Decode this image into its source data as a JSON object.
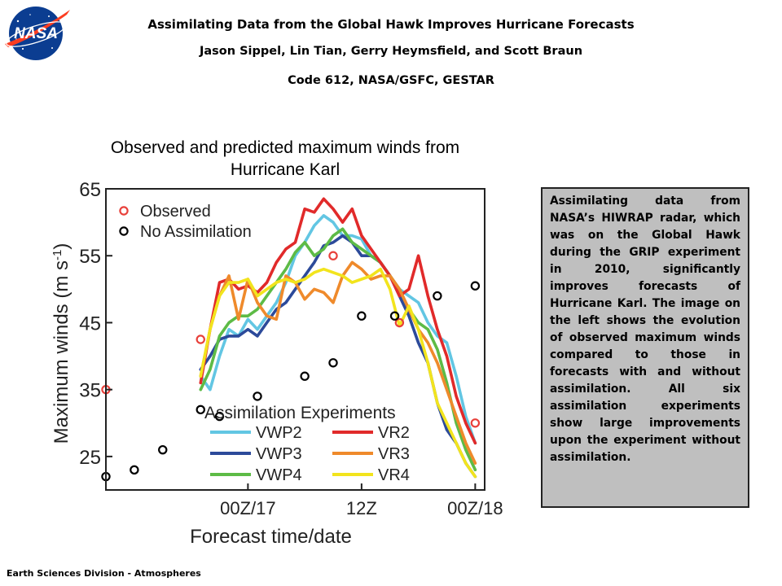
{
  "header": {
    "title": "Assimilating Data from the Global Hawk Improves Hurricane Forecasts",
    "authors": "Jason Sippel, Lin Tian, Gerry Heymsfield, and Scott Braun",
    "affiliation": "Code 612, NASA/GSFC, GESTAR"
  },
  "logo": {
    "text": "NASA",
    "colors": {
      "blue": "#0b3d91",
      "red": "#fc3d21"
    }
  },
  "chart_data": {
    "type": "line",
    "title": "Observed and predicted maximum winds from Hurricane Karl",
    "xlabel": "Forecast time/date",
    "ylabel": "Maximum winds (m s-1)",
    "ylim": [
      20,
      65
    ],
    "xlim": [
      -15,
      25
    ],
    "x_ticks": [
      {
        "x": 0,
        "label": "00Z/17"
      },
      {
        "x": 12,
        "label": "12Z"
      },
      {
        "x": 24,
        "label": "00Z/18"
      }
    ],
    "y_ticks": [
      25,
      35,
      45,
      55,
      65
    ],
    "grid": false,
    "legend_top": {
      "entries": [
        {
          "label": "Observed",
          "marker": "circle",
          "color": "#e8403a"
        },
        {
          "label": "No Assimilation",
          "marker": "circle",
          "color": "#000000"
        }
      ],
      "placement": "top-left"
    },
    "legend_bottom": {
      "title": "Assimilation Experiments",
      "placement": "bottom-center"
    },
    "series": [
      {
        "name": "Observed",
        "style": "points",
        "color": "#e8403a",
        "x": [
          -15,
          -5,
          9,
          16,
          24
        ],
        "values": [
          35,
          42.5,
          55,
          45,
          30
        ]
      },
      {
        "name": "No Assimilation",
        "style": "points",
        "color": "#000000",
        "x": [
          -15,
          -12,
          -9,
          -5,
          -3,
          1,
          6,
          9,
          12,
          15.5,
          20,
          24
        ],
        "values": [
          22,
          23,
          26,
          32,
          31,
          34,
          37,
          39,
          46,
          46,
          49,
          50.5
        ]
      },
      {
        "name": "VWP2",
        "style": "line",
        "color": "#62c6e3",
        "x": [
          -5,
          -4,
          -3,
          -2,
          -1,
          0,
          1,
          2,
          3,
          4,
          5,
          6,
          7,
          8,
          9,
          10,
          11,
          12,
          13,
          14,
          15,
          16,
          17,
          18,
          19,
          20,
          21,
          22,
          23,
          24
        ],
        "values": [
          37,
          35,
          40,
          44,
          43,
          45.5,
          44,
          46,
          48,
          51,
          55,
          57,
          59.5,
          61,
          60,
          58,
          58,
          57.5,
          55,
          54,
          52,
          50,
          49,
          48,
          45,
          43,
          42,
          37,
          31,
          27
        ]
      },
      {
        "name": "VWP3",
        "style": "line",
        "color": "#2c4a9a",
        "x": [
          -5,
          -4,
          -3,
          -2,
          -1,
          0,
          1,
          2,
          3,
          4,
          5,
          6,
          7,
          8,
          9,
          10,
          11,
          12,
          13,
          14,
          15,
          16,
          17,
          18,
          19,
          20,
          21,
          22,
          23,
          24
        ],
        "values": [
          38,
          40,
          42.5,
          43,
          43,
          44,
          43,
          45,
          47,
          48,
          50,
          52,
          54,
          56.5,
          57,
          58,
          57,
          55,
          55,
          54,
          52,
          49,
          46,
          42,
          39,
          33,
          29,
          27,
          24,
          22
        ]
      },
      {
        "name": "VWP4",
        "style": "line",
        "color": "#5dbb46",
        "x": [
          -5,
          -4,
          -3,
          -2,
          -1,
          0,
          1,
          2,
          3,
          4,
          5,
          6,
          7,
          8,
          9,
          10,
          11,
          12,
          13,
          14,
          15,
          16,
          17,
          18,
          19,
          20,
          21,
          22,
          23,
          24
        ],
        "values": [
          35,
          38,
          43,
          45,
          46,
          46,
          47,
          49,
          51,
          53,
          55.5,
          57,
          55,
          56,
          58,
          59,
          57,
          56,
          55,
          54,
          52,
          50,
          47,
          45,
          44,
          41,
          36,
          30,
          26,
          23
        ]
      },
      {
        "name": "VR2",
        "style": "line",
        "color": "#e12a2a",
        "x": [
          -5,
          -4,
          -3,
          -2,
          -1,
          0,
          1,
          2,
          3,
          4,
          5,
          6,
          7,
          8,
          9,
          10,
          11,
          12,
          13,
          14,
          15,
          16,
          17,
          18,
          19,
          20,
          21,
          22,
          23,
          24
        ],
        "values": [
          36,
          44,
          51,
          51.5,
          50,
          50.5,
          49.5,
          51,
          54,
          56,
          57,
          62,
          61.5,
          63.5,
          62,
          60,
          62,
          58,
          56,
          54,
          52,
          49,
          50,
          55,
          49,
          44,
          40,
          34,
          30,
          27
        ]
      },
      {
        "name": "VR3",
        "style": "line",
        "color": "#ef8a2b",
        "x": [
          -5,
          -4,
          -3,
          -2,
          -1,
          0,
          1,
          2,
          3,
          4,
          5,
          6,
          7,
          8,
          9,
          10,
          11,
          12,
          13,
          14,
          15,
          16,
          17,
          18,
          19,
          20,
          21,
          22,
          23,
          24
        ],
        "values": [
          37,
          44,
          49,
          52,
          45.5,
          51.5,
          48,
          46,
          45.5,
          52,
          51,
          48.5,
          50,
          49.5,
          48,
          52,
          54,
          53,
          51.5,
          52,
          52,
          50,
          47,
          44,
          42,
          39,
          35,
          31,
          27,
          24
        ]
      },
      {
        "name": "VR4",
        "style": "line",
        "color": "#f2e41d",
        "x": [
          -5,
          -4,
          -3,
          -2,
          -1,
          0,
          1,
          2,
          3,
          4,
          5,
          6,
          7,
          8,
          9,
          10,
          11,
          12,
          13,
          14,
          15,
          16,
          17,
          18,
          19,
          20,
          21,
          22,
          23,
          24
        ],
        "values": [
          37,
          44,
          49,
          51,
          51,
          51.5,
          49,
          50,
          51,
          51.5,
          51,
          51.5,
          52.5,
          53,
          52.5,
          52,
          51,
          51.5,
          52,
          53,
          50,
          44.5,
          47.5,
          44,
          39,
          33,
          30,
          27,
          24,
          22
        ]
      }
    ]
  },
  "description": "Assimilating data from NASA’s HIWRAP radar, which was on the Global Hawk during the GRIP experiment in 2010, significantly improves forecasts of Hurricane Karl. The image on the left shows the evolution of observed maximum winds compared to those in forecasts with and without assimilation.  All six assimilation experiments show large improvements upon the experiment without assimilation.",
  "footer": "Earth Sciences Division - Atmospheres"
}
